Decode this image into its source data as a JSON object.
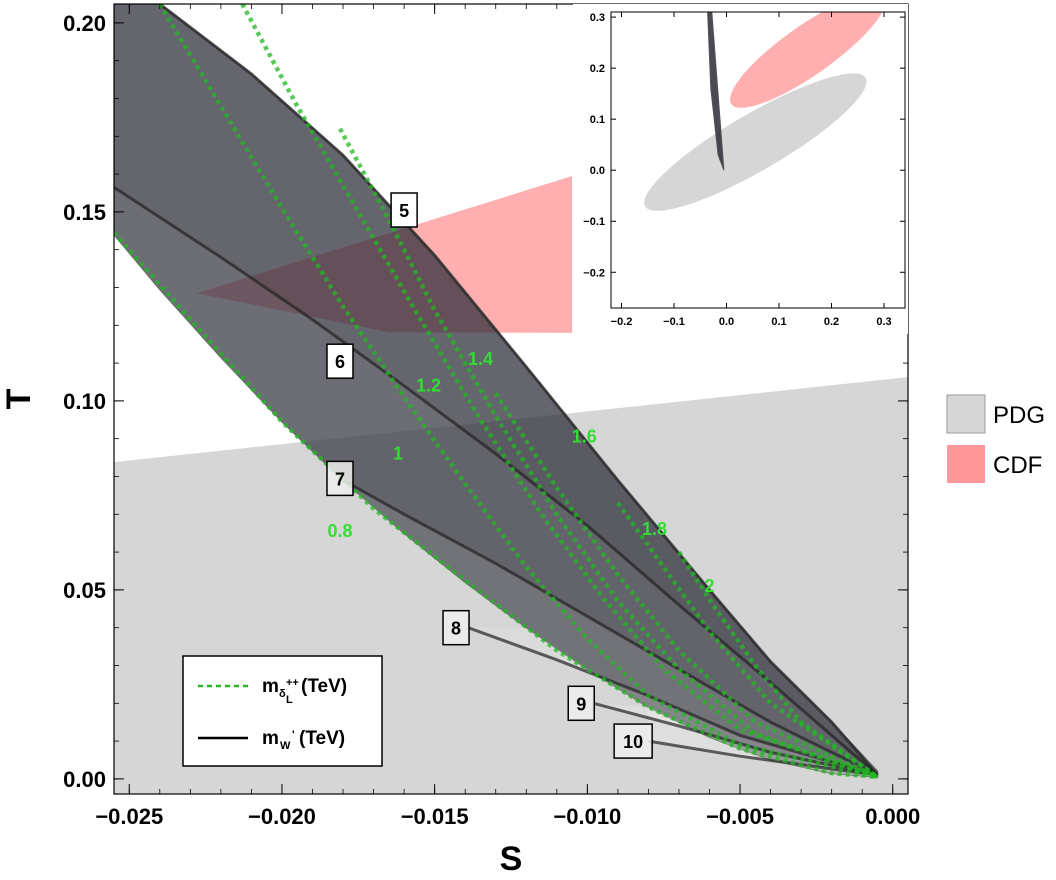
{
  "chart_data": [
    {
      "type": "line",
      "title": "",
      "xlabel": "S",
      "ylabel": "T",
      "xlim": [
        -0.0255,
        0.0005
      ],
      "ylim": [
        -0.004,
        0.205
      ],
      "x_ticks": [
        -0.025,
        -0.02,
        -0.015,
        -0.01,
        -0.005,
        0.0
      ],
      "x_tick_labels": [
        "−0.025",
        "−0.020",
        "−0.015",
        "−0.010",
        "−0.005",
        "0.000"
      ],
      "y_ticks": [
        0.0,
        0.05,
        0.1,
        0.15,
        0.2
      ],
      "y_tick_labels": [
        "0.00",
        "0.05",
        "0.10",
        "0.15",
        "0.20"
      ],
      "grid": false,
      "regions": [
        {
          "name": "PDG",
          "color": "#d6d6d6",
          "polygon": [
            [
              -0.0255,
              0.0838
            ],
            [
              0.0005,
              0.1063
            ],
            [
              0.0005,
              -0.004
            ],
            [
              -0.0255,
              -0.004
            ]
          ]
        },
        {
          "name": "CDF",
          "color": "#ff9999",
          "polygon": [
            [
              -0.0228,
              0.1285
            ],
            [
              -0.0105,
              0.1595
            ],
            [
              -0.0105,
              0.118
            ],
            [
              -0.0165,
              0.1182
            ]
          ]
        }
      ],
      "allowed_region": {
        "color": "#2a2a36",
        "upper_edge": [
          [
            -0.024,
            0.205
          ],
          [
            -0.021,
            0.1865
          ],
          [
            -0.018,
            0.165
          ],
          [
            -0.015,
            0.1385
          ],
          [
            -0.012,
            0.109
          ],
          [
            -0.009,
            0.079
          ],
          [
            -0.006,
            0.05
          ],
          [
            -0.004,
            0.031
          ],
          [
            -0.002,
            0.015
          ],
          [
            -0.0005,
            0.002
          ]
        ],
        "lower_edge": [
          [
            -0.0255,
            0.144
          ],
          [
            -0.024,
            0.1295
          ],
          [
            -0.022,
            0.1115
          ],
          [
            -0.02,
            0.0945
          ],
          [
            -0.018,
            0.079
          ],
          [
            -0.016,
            0.065
          ],
          [
            -0.014,
            0.052
          ],
          [
            -0.012,
            0.04
          ],
          [
            -0.01,
            0.029
          ],
          [
            -0.008,
            0.019
          ],
          [
            -0.006,
            0.011
          ],
          [
            -0.004,
            0.005
          ],
          [
            -0.002,
            0.0015
          ],
          [
            -0.0005,
            0.0005
          ]
        ],
        "left_edge_top": [
          -0.0255,
          0.205
        ]
      },
      "mWprime_curves": [
        {
          "label": "5",
          "points": [
            [
              -0.024,
              0.205
            ],
            [
              -0.021,
              0.1865
            ],
            [
              -0.018,
              0.165
            ],
            [
              -0.015,
              0.1385
            ],
            [
              -0.012,
              0.109
            ],
            [
              -0.009,
              0.079
            ],
            [
              -0.006,
              0.05
            ],
            [
              -0.004,
              0.031
            ],
            [
              -0.002,
              0.015
            ],
            [
              -0.0005,
              0.001
            ]
          ],
          "label_at": [
            -0.016,
            0.1505
          ]
        },
        {
          "label": "6",
          "points": [
            [
              -0.0255,
              0.1565
            ],
            [
              -0.022,
              0.138
            ],
            [
              -0.019,
              0.1215
            ],
            [
              -0.016,
              0.104
            ],
            [
              -0.013,
              0.086
            ],
            [
              -0.01,
              0.067
            ],
            [
              -0.007,
              0.046
            ],
            [
              -0.004,
              0.0255
            ],
            [
              -0.0005,
              0.001
            ]
          ],
          "label_at": [
            -0.0181,
            0.1105
          ]
        },
        {
          "label": "7",
          "points": [
            [
              -0.0181,
              0.0795
            ],
            [
              -0.016,
              0.07
            ],
            [
              -0.013,
              0.057
            ],
            [
              -0.01,
              0.043
            ],
            [
              -0.007,
              0.029
            ],
            [
              -0.004,
              0.015
            ],
            [
              -0.0005,
              0.001
            ]
          ],
          "label_at": [
            -0.0181,
            0.0795
          ]
        },
        {
          "label": "8",
          "points": [
            [
              -0.0139,
              0.04
            ],
            [
              -0.011,
              0.0315
            ],
            [
              -0.008,
              0.022
            ],
            [
              -0.005,
              0.0115
            ],
            [
              -0.0005,
              0.001
            ]
          ],
          "label_at": [
            -0.0143,
            0.04
          ]
        },
        {
          "label": "9",
          "points": [
            [
              -0.0098,
              0.02
            ],
            [
              -0.007,
              0.014
            ],
            [
              -0.004,
              0.007
            ],
            [
              -0.0005,
              0.001
            ]
          ],
          "label_at": [
            -0.0102,
            0.02
          ]
        },
        {
          "label": "10",
          "points": [
            [
              -0.008,
              0.01
            ],
            [
              -0.005,
              0.006
            ],
            [
              -0.0005,
              0.001
            ]
          ],
          "label_at": [
            -0.0085,
            0.01
          ]
        }
      ],
      "mDelta_curves": [
        {
          "label": "0.8",
          "points": [
            [
              -0.0255,
              0.1445
            ],
            [
              -0.023,
              0.1215
            ],
            [
              -0.02,
              0.0945
            ],
            [
              -0.017,
              0.0715
            ],
            [
              -0.014,
              0.0525
            ],
            [
              -0.011,
              0.034
            ],
            [
              -0.008,
              0.019
            ],
            [
              -0.005,
              0.008
            ],
            [
              -0.002,
              0.0015
            ],
            [
              -0.0005,
              0.0005
            ]
          ],
          "label_at": [
            -0.0181,
            0.064
          ]
        },
        {
          "label": "1",
          "points": [
            [
              -0.024,
              0.205
            ],
            [
              -0.022,
              0.178
            ],
            [
              -0.02,
              0.151
            ],
            [
              -0.018,
              0.125
            ],
            [
              -0.016,
              0.101
            ],
            [
              -0.014,
              0.078
            ],
            [
              -0.012,
              0.056
            ],
            [
              -0.01,
              0.037
            ],
            [
              -0.008,
              0.022
            ],
            [
              -0.005,
              0.009
            ],
            [
              -0.0005,
              0.0005
            ]
          ],
          "label_at": [
            -0.0162,
            0.0845
          ]
        },
        {
          "label": "1.2",
          "points": [
            [
              -0.0213,
              0.205
            ],
            [
              -0.0195,
              0.178
            ],
            [
              -0.0175,
              0.15
            ],
            [
              -0.0155,
              0.122
            ],
            [
              -0.0135,
              0.095
            ],
            [
              -0.0115,
              0.07
            ],
            [
              -0.0095,
              0.048
            ],
            [
              -0.0075,
              0.029
            ],
            [
              -0.005,
              0.013
            ],
            [
              -0.0005,
              0.0005
            ]
          ],
          "label_at": [
            -0.0152,
            0.1025
          ]
        },
        {
          "label": "1.4",
          "points": [
            [
              -0.0181,
              0.172
            ],
            [
              -0.0165,
              0.148
            ],
            [
              -0.015,
              0.124
            ],
            [
              -0.013,
              0.096
            ],
            [
              -0.011,
              0.07
            ],
            [
              -0.009,
              0.047
            ],
            [
              -0.007,
              0.029
            ],
            [
              -0.0045,
              0.012
            ],
            [
              -0.0005,
              0.0005
            ]
          ],
          "label_at": [
            -0.0135,
            0.1095
          ]
        },
        {
          "label": "1.6",
          "points": [
            [
              -0.013,
              0.102
            ],
            [
              -0.011,
              0.077
            ],
            [
              -0.009,
              0.054
            ],
            [
              -0.007,
              0.034
            ],
            [
              -0.0045,
              0.015
            ],
            [
              -0.0005,
              0.0005
            ]
          ],
          "label_at": [
            -0.0101,
            0.089
          ]
        },
        {
          "label": "1.8",
          "points": [
            [
              -0.009,
              0.073
            ],
            [
              -0.0075,
              0.056
            ],
            [
              -0.006,
              0.039
            ],
            [
              -0.004,
              0.02
            ],
            [
              -0.0005,
              0.0005
            ]
          ],
          "label_at": [
            -0.0078,
            0.0645
          ]
        },
        {
          "label": "2",
          "points": [
            [
              -0.007,
              0.06
            ],
            [
              -0.0058,
              0.045
            ],
            [
              -0.0045,
              0.03
            ],
            [
              -0.003,
              0.015
            ],
            [
              -0.0005,
              0.0005
            ]
          ],
          "label_at": [
            -0.006,
            0.0495
          ]
        }
      ],
      "legend": [
        {
          "label": "PDG",
          "color": "#d6d6d6",
          "placement": "right"
        },
        {
          "label": "CDF",
          "color": "#ff9999",
          "placement": "right"
        }
      ],
      "inner_legend": {
        "placement": "bottom-left",
        "entries": [
          {
            "style": "dashed",
            "color": "#22b822",
            "text": "m",
            "sub": "δ",
            "sub2": "L",
            "sup": "++",
            "suffix": "(TeV)"
          },
          {
            "style": "solid",
            "color": "#000000",
            "text": "m",
            "sub": "W",
            "sup": "'",
            "suffix": "(TeV)"
          }
        ]
      },
      "label_colors": {
        "delta": "#33dd33",
        "delta_line": "#22b822",
        "w_box": "#ffffff",
        "w_box_light": "#eeeeee"
      }
    },
    {
      "type": "inset",
      "placement": "top-right",
      "xlim": [
        -0.22,
        0.34
      ],
      "ylim": [
        -0.27,
        0.31
      ],
      "x_ticks": [
        -0.2,
        -0.1,
        0.0,
        0.1,
        0.2,
        0.3
      ],
      "x_tick_labels": [
        "−0.2",
        "−0.1",
        "0.0",
        "0.1",
        "0.2",
        "0.3"
      ],
      "y_ticks": [
        -0.2,
        -0.1,
        0.0,
        0.1,
        0.2,
        0.3
      ],
      "y_tick_labels": [
        "−0.2",
        "−0.1",
        "0.0",
        "0.1",
        "0.2",
        "0.3"
      ],
      "pdg_ellipse": {
        "cx": 0.055,
        "cy": 0.055,
        "rx": 0.245,
        "ry": 0.055,
        "angle_deg": 31,
        "color": "#d6d6d6"
      },
      "cdf_ellipse": {
        "cx": 0.155,
        "cy": 0.235,
        "rx": 0.18,
        "ry": 0.048,
        "angle_deg": 36,
        "color": "#ff9999"
      },
      "allowed_sliver": [
        [
          -0.036,
          0.31
        ],
        [
          -0.028,
          0.31
        ],
        [
          -0.005,
          0.0
        ],
        [
          -0.016,
          0.03
        ],
        [
          -0.03,
          0.16
        ]
      ]
    }
  ]
}
